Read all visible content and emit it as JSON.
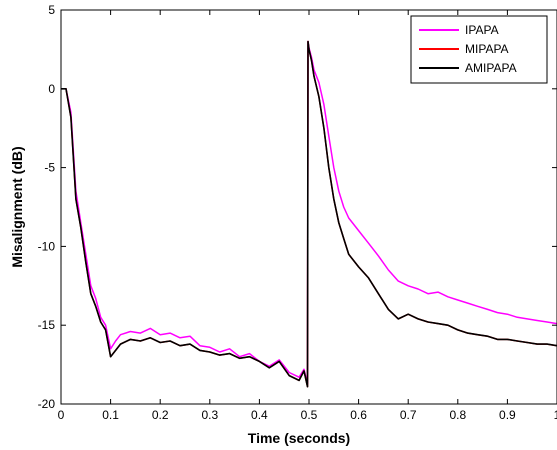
{
  "chart_data": {
    "type": "line",
    "title": "",
    "xlabel": "Time (seconds)",
    "ylabel": "Misalignment (dB)",
    "xlim": [
      0,
      1
    ],
    "ylim": [
      -20,
      5
    ],
    "xticks": [
      0,
      0.1,
      0.2,
      0.3,
      0.4,
      0.5,
      0.6,
      0.7,
      0.8,
      0.9,
      1
    ],
    "xtick_labels": [
      "0",
      "0.1",
      "0.2",
      "0.3",
      "0.4",
      "0.5",
      "0.6",
      "0.7",
      "0.8",
      "0.9",
      "1"
    ],
    "yticks": [
      5,
      0,
      -5,
      -10,
      -15,
      -20
    ],
    "ytick_labels": [
      "5",
      "0",
      "-5",
      "-10",
      "-15",
      "-20"
    ],
    "grid": false,
    "legend_position": "top-right",
    "series": [
      {
        "name": "IPAPA",
        "color": "#ff00ff",
        "x": [
          0,
          0.01,
          0.02,
          0.03,
          0.04,
          0.05,
          0.06,
          0.07,
          0.08,
          0.09,
          0.1,
          0.11,
          0.12,
          0.14,
          0.16,
          0.18,
          0.2,
          0.22,
          0.24,
          0.26,
          0.28,
          0.3,
          0.32,
          0.34,
          0.36,
          0.38,
          0.4,
          0.42,
          0.44,
          0.46,
          0.48,
          0.49,
          0.497,
          0.498,
          0.5,
          0.505,
          0.51,
          0.52,
          0.53,
          0.54,
          0.55,
          0.56,
          0.57,
          0.58,
          0.6,
          0.62,
          0.64,
          0.66,
          0.68,
          0.7,
          0.72,
          0.74,
          0.76,
          0.78,
          0.8,
          0.82,
          0.84,
          0.86,
          0.88,
          0.9,
          0.92,
          0.94,
          0.96,
          0.98,
          1.0
        ],
        "y": [
          0,
          0,
          -1.5,
          -6.5,
          -8.5,
          -10.5,
          -12.5,
          -13.3,
          -14.5,
          -15.0,
          -16.5,
          -16.0,
          -15.6,
          -15.4,
          -15.5,
          -15.2,
          -15.6,
          -15.5,
          -15.8,
          -15.7,
          -16.3,
          -16.4,
          -16.7,
          -16.5,
          -17.0,
          -16.8,
          -17.3,
          -17.6,
          -17.2,
          -18.0,
          -18.3,
          -17.8,
          -18.7,
          3.0,
          2.6,
          2.0,
          1.2,
          0.4,
          -1.0,
          -3.0,
          -5.0,
          -6.5,
          -7.5,
          -8.2,
          -9.0,
          -9.8,
          -10.6,
          -11.5,
          -12.2,
          -12.5,
          -12.7,
          -13.0,
          -12.9,
          -13.2,
          -13.4,
          -13.6,
          -13.8,
          -14.0,
          -14.2,
          -14.3,
          -14.5,
          -14.6,
          -14.7,
          -14.8,
          -14.9
        ]
      },
      {
        "name": "MIPAPA",
        "color": "#ff0000",
        "x": [
          0,
          0.01,
          0.02,
          0.03,
          0.04,
          0.05,
          0.06,
          0.07,
          0.08,
          0.09,
          0.1,
          0.11,
          0.12,
          0.14,
          0.16,
          0.18,
          0.2,
          0.22,
          0.24,
          0.26,
          0.28,
          0.3,
          0.32,
          0.34,
          0.36,
          0.38,
          0.4,
          0.42,
          0.44,
          0.46,
          0.48,
          0.49,
          0.497,
          0.498,
          0.5,
          0.505,
          0.51,
          0.52,
          0.53,
          0.54,
          0.55,
          0.56,
          0.57,
          0.58,
          0.6,
          0.62,
          0.64,
          0.66,
          0.68,
          0.7,
          0.72,
          0.74,
          0.76,
          0.78,
          0.8,
          0.82,
          0.84,
          0.86,
          0.88,
          0.9,
          0.92,
          0.94,
          0.96,
          0.98,
          1.0
        ],
        "y": [
          0,
          0,
          -1.8,
          -7.0,
          -8.8,
          -11.0,
          -13.0,
          -13.8,
          -14.8,
          -15.3,
          -17.0,
          -16.6,
          -16.2,
          -15.9,
          -16.0,
          -15.8,
          -16.1,
          -16.0,
          -16.3,
          -16.2,
          -16.6,
          -16.7,
          -16.9,
          -16.8,
          -17.1,
          -17.0,
          -17.3,
          -17.7,
          -17.3,
          -18.2,
          -18.5,
          -17.9,
          -18.9,
          3.0,
          2.5,
          1.8,
          0.8,
          -0.5,
          -2.5,
          -5.0,
          -7.0,
          -8.5,
          -9.5,
          -10.5,
          -11.3,
          -12.0,
          -13.0,
          -14.0,
          -14.6,
          -14.3,
          -14.6,
          -14.8,
          -14.9,
          -15.0,
          -15.3,
          -15.5,
          -15.6,
          -15.7,
          -15.9,
          -15.9,
          -16.0,
          -16.1,
          -16.2,
          -16.2,
          -16.3
        ]
      },
      {
        "name": "AMIPAPA",
        "color": "#000000",
        "x": [
          0,
          0.01,
          0.02,
          0.03,
          0.04,
          0.05,
          0.06,
          0.07,
          0.08,
          0.09,
          0.1,
          0.11,
          0.12,
          0.14,
          0.16,
          0.18,
          0.2,
          0.22,
          0.24,
          0.26,
          0.28,
          0.3,
          0.32,
          0.34,
          0.36,
          0.38,
          0.4,
          0.42,
          0.44,
          0.46,
          0.48,
          0.49,
          0.497,
          0.498,
          0.5,
          0.505,
          0.51,
          0.52,
          0.53,
          0.54,
          0.55,
          0.56,
          0.57,
          0.58,
          0.6,
          0.62,
          0.64,
          0.66,
          0.68,
          0.7,
          0.72,
          0.74,
          0.76,
          0.78,
          0.8,
          0.82,
          0.84,
          0.86,
          0.88,
          0.9,
          0.92,
          0.94,
          0.96,
          0.98,
          1.0
        ],
        "y": [
          0,
          0,
          -1.8,
          -7.0,
          -8.8,
          -11.0,
          -13.0,
          -13.8,
          -14.8,
          -15.3,
          -17.0,
          -16.6,
          -16.2,
          -15.9,
          -16.0,
          -15.8,
          -16.1,
          -16.0,
          -16.3,
          -16.2,
          -16.6,
          -16.7,
          -16.9,
          -16.8,
          -17.1,
          -17.0,
          -17.3,
          -17.7,
          -17.3,
          -18.2,
          -18.5,
          -17.9,
          -18.9,
          3.0,
          2.5,
          1.8,
          0.8,
          -0.5,
          -2.5,
          -5.0,
          -7.0,
          -8.5,
          -9.5,
          -10.5,
          -11.3,
          -12.0,
          -13.0,
          -14.0,
          -14.6,
          -14.3,
          -14.6,
          -14.8,
          -14.9,
          -15.0,
          -15.3,
          -15.5,
          -15.6,
          -15.7,
          -15.9,
          -15.9,
          -16.0,
          -16.1,
          -16.2,
          -16.2,
          -16.3
        ]
      }
    ]
  }
}
